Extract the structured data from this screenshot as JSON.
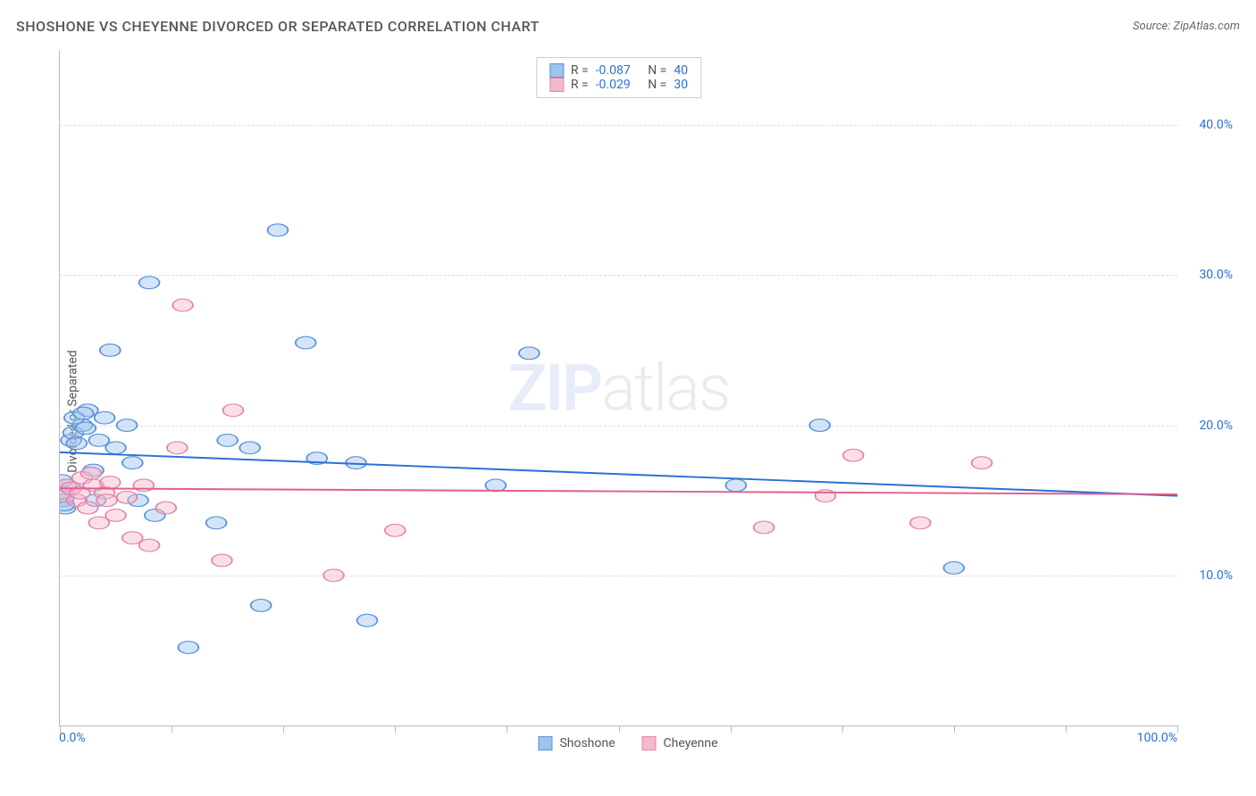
{
  "header": {
    "title": "SHOSHONE VS CHEYENNE DIVORCED OR SEPARATED CORRELATION CHART",
    "source": "Source: ZipAtlas.com"
  },
  "y_axis_label": "Divorced or Separated",
  "watermark": {
    "bold": "ZIP",
    "light": "atlas"
  },
  "chart": {
    "type": "scatter",
    "xlim": [
      0,
      100
    ],
    "ylim": [
      0,
      45
    ],
    "x_ticks": [
      0,
      10,
      20,
      30,
      40,
      50,
      60,
      70,
      80,
      90,
      100
    ],
    "x_tick_labels": {
      "0": "0.0%",
      "100": "100.0%"
    },
    "y_gridlines": [
      10,
      20,
      30,
      40
    ],
    "y_tick_labels": {
      "10": "10.0%",
      "20": "20.0%",
      "30": "30.0%",
      "40": "40.0%"
    },
    "grid_color": "#dddddd",
    "axis_color": "#bbbbbb",
    "background_color": "#ffffff",
    "tick_label_color": "#2b6fd6",
    "marker_radius": 7,
    "marker_opacity": 0.45,
    "line_width": 2
  },
  "series": [
    {
      "name": "Shoshone",
      "fill": "#9fc3ed",
      "stroke": "#5a94d8",
      "line_color": "#2b6fd6",
      "R": "-0.087",
      "N": "40",
      "trend": {
        "y_at_x0": 18.2,
        "y_at_x100": 15.3
      },
      "points": [
        [
          0.3,
          15.0
        ],
        [
          0.3,
          15.5
        ],
        [
          0.5,
          14.5
        ],
        [
          0.6,
          16.0
        ],
        [
          1.0,
          19.0
        ],
        [
          1.2,
          19.5
        ],
        [
          1.5,
          18.8
        ],
        [
          2.0,
          20.0
        ],
        [
          2.3,
          19.8
        ],
        [
          2.5,
          21.0
        ],
        [
          3.0,
          17.0
        ],
        [
          3.5,
          19.0
        ],
        [
          4.0,
          20.5
        ],
        [
          4.5,
          25.0
        ],
        [
          5.0,
          18.5
        ],
        [
          6.0,
          20.0
        ],
        [
          6.5,
          17.5
        ],
        [
          7.0,
          15.0
        ],
        [
          8.0,
          29.5
        ],
        [
          8.5,
          14.0
        ],
        [
          11.5,
          5.2
        ],
        [
          14.0,
          13.5
        ],
        [
          15.0,
          19.0
        ],
        [
          17.0,
          18.5
        ],
        [
          18.0,
          8.0
        ],
        [
          19.5,
          33.0
        ],
        [
          22.0,
          25.5
        ],
        [
          23.0,
          17.8
        ],
        [
          26.5,
          17.5
        ],
        [
          27.5,
          7.0
        ],
        [
          39.0,
          16.0
        ],
        [
          42.0,
          24.8
        ],
        [
          60.5,
          16.0
        ],
        [
          68.0,
          20.0
        ],
        [
          80.0,
          10.5
        ],
        [
          0.2,
          16.3
        ],
        [
          0.4,
          14.7
        ],
        [
          1.3,
          20.5
        ],
        [
          2.1,
          20.8
        ],
        [
          3.2,
          15.0
        ]
      ]
    },
    {
      "name": "Cheyenne",
      "fill": "#f4b9cc",
      "stroke": "#e386a8",
      "line_color": "#e15f8e",
      "R": "-0.029",
      "N": "30",
      "trend": {
        "y_at_x0": 15.8,
        "y_at_x100": 15.4
      },
      "points": [
        [
          0.4,
          15.3
        ],
        [
          0.6,
          16.0
        ],
        [
          1.0,
          15.8
        ],
        [
          1.5,
          15.0
        ],
        [
          2.0,
          16.5
        ],
        [
          2.5,
          14.5
        ],
        [
          3.0,
          16.0
        ],
        [
          3.5,
          13.5
        ],
        [
          4.0,
          15.5
        ],
        [
          4.5,
          16.2
        ],
        [
          5.0,
          14.0
        ],
        [
          6.0,
          15.2
        ],
        [
          6.5,
          12.5
        ],
        [
          7.5,
          16.0
        ],
        [
          8.0,
          12.0
        ],
        [
          9.5,
          14.5
        ],
        [
          10.5,
          18.5
        ],
        [
          11.0,
          28.0
        ],
        [
          14.5,
          11.0
        ],
        [
          15.5,
          21.0
        ],
        [
          24.5,
          10.0
        ],
        [
          30.0,
          13.0
        ],
        [
          63.0,
          13.2
        ],
        [
          68.5,
          15.3
        ],
        [
          71.0,
          18.0
        ],
        [
          77.0,
          13.5
        ],
        [
          82.5,
          17.5
        ],
        [
          1.8,
          15.5
        ],
        [
          2.8,
          16.8
        ],
        [
          4.2,
          15.0
        ]
      ]
    }
  ],
  "legend_top": {
    "r_label": "R =",
    "n_label": "N ="
  },
  "legend_bottom": [
    {
      "label": "Shoshone",
      "fill": "#9fc3ed",
      "stroke": "#5a94d8"
    },
    {
      "label": "Cheyenne",
      "fill": "#f4b9cc",
      "stroke": "#e386a8"
    }
  ]
}
